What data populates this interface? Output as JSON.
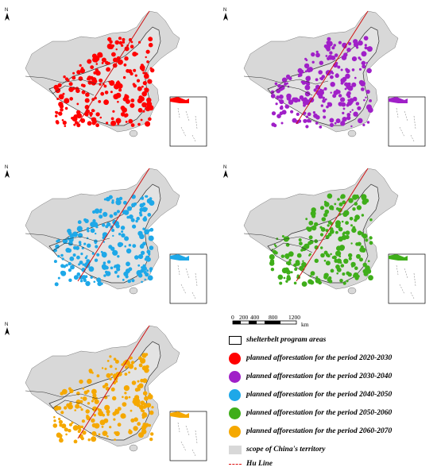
{
  "north_label": "N",
  "panels": [
    {
      "id": "p1",
      "color": "#ff0000"
    },
    {
      "id": "p2",
      "color": "#a020c8"
    },
    {
      "id": "p3",
      "color": "#1ea8e8"
    },
    {
      "id": "p4",
      "color": "#3fae1a"
    },
    {
      "id": "p5",
      "color": "#f5a800"
    }
  ],
  "scale": {
    "ticks": [
      "0",
      "200",
      "400",
      "800",
      "1200"
    ],
    "unit": "km"
  },
  "legend": {
    "program_areas": "shelterbelt program areas",
    "p2020": "planned afforestation for the period 2020-2030",
    "p2030": "planned afforestation for the period 2030-2040",
    "p2040": "planned afforestation for the period 2040-2050",
    "p2050": "planned afforestation for the period 2050-2060",
    "p2060": "planned afforestation for the period 2060-2070",
    "territory": "scope of China's territory",
    "hu_line": "Hu Line"
  },
  "colors": {
    "red": "#ff0000",
    "purple": "#a020c8",
    "blue": "#1ea8e8",
    "green": "#3fae1a",
    "orange": "#f5a800",
    "territory": "#d8d8d8",
    "hu_line": "#d11111"
  }
}
